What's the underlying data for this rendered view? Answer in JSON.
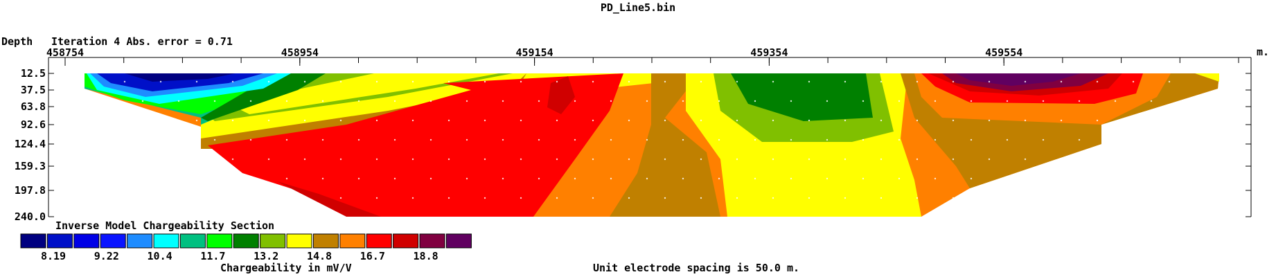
{
  "chart_data": {
    "type": "heatmap",
    "title": "PD_Line5.bin",
    "depth_label": "Depth",
    "iteration_text": "Iteration 4 Abs. error = 0.71",
    "x_unit": "m.",
    "xlim": [
      458754,
      459754
    ],
    "x_ticks": [
      458754,
      458954,
      459154,
      459354,
      459554
    ],
    "x_tick_labels": [
      "458754",
      "458954",
      "459154",
      "459354",
      "459554"
    ],
    "depth_levels": [
      12.5,
      37.5,
      63.8,
      92.6,
      124.4,
      159.3,
      197.8,
      240.0
    ],
    "depth_labels": [
      "12.5",
      "37.5",
      "63.8",
      "92.6",
      "124.4",
      "159.3",
      "197.8",
      "240.0"
    ],
    "section_title": "Inverse Model Chargeability Section",
    "legend_colors": [
      "#000080",
      "#0010c8",
      "#0000e6",
      "#0a14ff",
      "#1e8cff",
      "#00ffff",
      "#00c080",
      "#00ff00",
      "#008000",
      "#80c000",
      "#ffff00",
      "#c08000",
      "#ff8000",
      "#ff0000",
      "#d00000",
      "#800040",
      "#600060"
    ],
    "legend_labels": [
      "8.19",
      "9.22",
      "10.4",
      "11.7",
      "13.2",
      "14.8",
      "16.7",
      "18.8"
    ],
    "colorbar_label": "Chargeability in mV/V",
    "footer_note": "Unit electrode spacing is 50.0 m."
  }
}
